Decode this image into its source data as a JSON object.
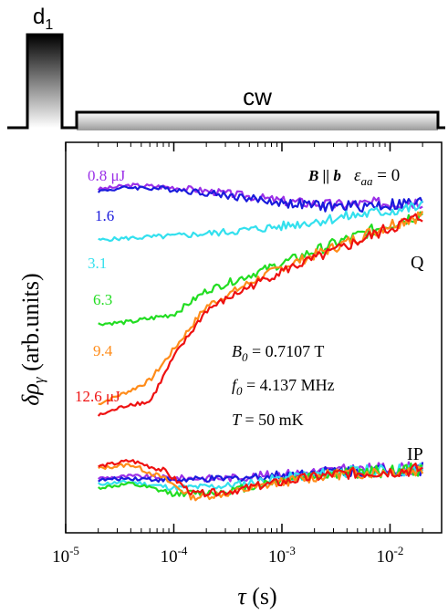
{
  "pulse_sequence": {
    "pulse1_label": "d",
    "pulse1_subscript": "1",
    "pulse2_label": "cw"
  },
  "chart_data": {
    "type": "line",
    "xscale": "log",
    "xlim": [
      1e-05,
      0.03
    ],
    "x_ticks": [
      {
        "value": 1e-05,
        "base": "10",
        "exp": "-5"
      },
      {
        "value": 0.0001,
        "base": "10",
        "exp": "-4"
      },
      {
        "value": 0.001,
        "base": "10",
        "exp": "-3"
      },
      {
        "value": 0.01,
        "base": "10",
        "exp": "-2"
      }
    ],
    "xlabel": "τ (s)",
    "xlabel_symbol": "τ",
    "xlabel_unit": " (s)",
    "ylabel": "δρ_γ (arb.units)",
    "ylabel_symbol": "δρ",
    "ylabel_sub": "γ",
    "ylabel_unit": " (arb.units)",
    "ylim": [
      0,
      1
    ],
    "grid": false,
    "legend": "inline labels at left",
    "annotations": {
      "field_dir": "B || b",
      "strain": "ε",
      "strain_sub": "aa",
      "strain_value": " = 0",
      "group_Q": "Q",
      "group_IP": "IP",
      "param_B": "B",
      "param_B_sub": "0",
      "param_B_value": " = 0.7107 T",
      "param_f": "f",
      "param_f_sub": "0",
      "param_f_value": " = 4.137 MHz",
      "param_T": "T",
      "param_T_value": " = 50 mK"
    },
    "series": [
      {
        "name": "0.8 μJ",
        "color": "#9b30e8",
        "group": "Q",
        "x": [
          2e-05,
          4e-05,
          0.0001,
          0.0003,
          0.001,
          0.003,
          0.01,
          0.02
        ],
        "y": [
          0.88,
          0.89,
          0.885,
          0.87,
          0.85,
          0.84,
          0.845,
          0.85
        ]
      },
      {
        "name": "1.6",
        "color": "#1a1adc",
        "group": "Q",
        "x": [
          2e-05,
          4e-05,
          0.0001,
          0.0003,
          0.001,
          0.003,
          0.01,
          0.02
        ],
        "y": [
          0.875,
          0.885,
          0.88,
          0.865,
          0.845,
          0.835,
          0.84,
          0.845
        ]
      },
      {
        "name": "3.1",
        "color": "#33e0ee",
        "group": "Q",
        "x": [
          2e-05,
          4e-05,
          0.0001,
          0.0003,
          0.001,
          0.003,
          0.01,
          0.02
        ],
        "y": [
          0.75,
          0.755,
          0.76,
          0.77,
          0.785,
          0.805,
          0.825,
          0.835
        ]
      },
      {
        "name": "6.3",
        "color": "#22dd22",
        "group": "Q",
        "x": [
          2e-05,
          4e-05,
          0.0001,
          0.0002,
          0.0005,
          0.001,
          0.003,
          0.01,
          0.02
        ],
        "y": [
          0.535,
          0.54,
          0.56,
          0.62,
          0.66,
          0.69,
          0.74,
          0.79,
          0.82
        ]
      },
      {
        "name": "9.4",
        "color": "#ff8c1a",
        "group": "Q",
        "x": [
          2e-05,
          4e-05,
          6e-05,
          0.0001,
          0.0002,
          0.0005,
          0.001,
          0.003,
          0.01,
          0.02
        ],
        "y": [
          0.33,
          0.365,
          0.39,
          0.47,
          0.58,
          0.64,
          0.68,
          0.73,
          0.79,
          0.815
        ]
      },
      {
        "name": "12.6 μJ",
        "color": "#ee1111",
        "group": "Q",
        "x": [
          2e-05,
          4e-05,
          6e-05,
          0.0001,
          0.0002,
          0.0005,
          0.001,
          0.003,
          0.01,
          0.02
        ],
        "y": [
          0.3,
          0.33,
          0.335,
          0.45,
          0.57,
          0.63,
          0.67,
          0.72,
          0.78,
          0.81
        ]
      },
      {
        "name": "",
        "color": "#9b30e8",
        "group": "IP",
        "x": [
          2e-05,
          4e-05,
          0.0001,
          0.0003,
          0.001,
          0.003,
          0.01,
          0.02
        ],
        "y": [
          0.14,
          0.145,
          0.14,
          0.14,
          0.15,
          0.16,
          0.165,
          0.165
        ]
      },
      {
        "name": "",
        "color": "#1a1adc",
        "group": "IP",
        "x": [
          2e-05,
          4e-05,
          0.0001,
          0.0003,
          0.001,
          0.003,
          0.01,
          0.02
        ],
        "y": [
          0.135,
          0.14,
          0.135,
          0.138,
          0.148,
          0.158,
          0.162,
          0.164
        ]
      },
      {
        "name": "",
        "color": "#33e0ee",
        "group": "IP",
        "x": [
          2e-05,
          4e-05,
          0.0001,
          0.0003,
          0.001,
          0.003,
          0.01,
          0.02
        ],
        "y": [
          0.125,
          0.13,
          0.115,
          0.12,
          0.14,
          0.155,
          0.16,
          0.163
        ]
      },
      {
        "name": "",
        "color": "#22dd22",
        "group": "IP",
        "x": [
          2e-05,
          4e-05,
          0.0001,
          0.0003,
          0.001,
          0.003,
          0.01,
          0.02
        ],
        "y": [
          0.115,
          0.125,
          0.1,
          0.105,
          0.135,
          0.152,
          0.158,
          0.162
        ]
      },
      {
        "name": "",
        "color": "#ff8c1a",
        "group": "IP",
        "x": [
          2e-05,
          4e-05,
          8e-05,
          0.00015,
          0.0003,
          0.001,
          0.003,
          0.01,
          0.02
        ],
        "y": [
          0.165,
          0.175,
          0.14,
          0.09,
          0.1,
          0.13,
          0.15,
          0.158,
          0.162
        ]
      },
      {
        "name": "",
        "color": "#ee1111",
        "group": "IP",
        "x": [
          2e-05,
          4e-05,
          8e-05,
          0.00015,
          0.0003,
          0.001,
          0.003,
          0.01,
          0.02
        ],
        "y": [
          0.17,
          0.185,
          0.16,
          0.1,
          0.105,
          0.13,
          0.15,
          0.158,
          0.163
        ]
      }
    ]
  }
}
